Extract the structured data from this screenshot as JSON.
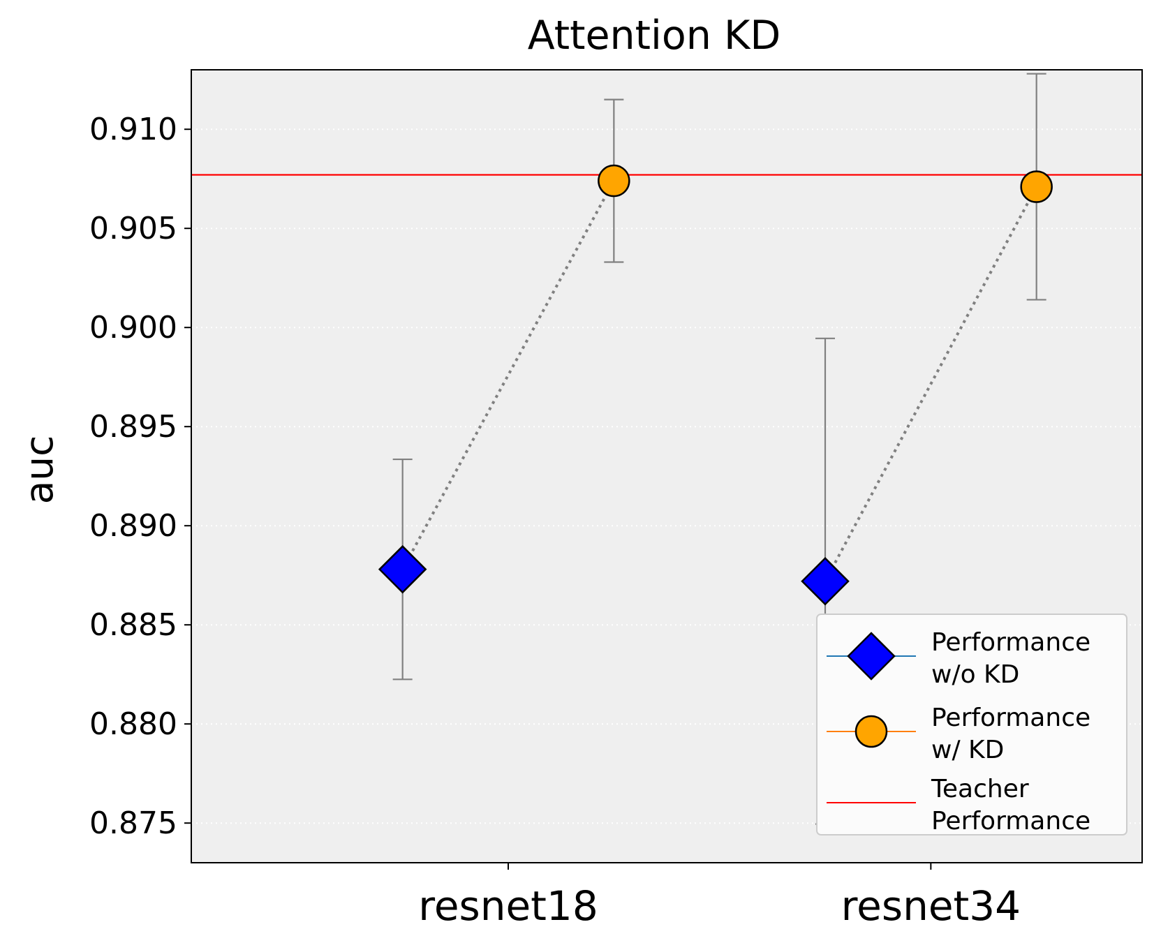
{
  "chart_data": {
    "type": "scatter",
    "title": "Attention KD",
    "xlabel": "",
    "ylabel": "auc",
    "categories": [
      "resnet18",
      "resnet34"
    ],
    "ylim": [
      0.873,
      0.913
    ],
    "yticks": [
      "0.875",
      "0.880",
      "0.885",
      "0.890",
      "0.895",
      "0.900",
      "0.905",
      "0.910"
    ],
    "grid": "horizontal dotted",
    "background": "#efefef",
    "series": [
      {
        "name": "Performance\nw/o KD",
        "marker": "diamond",
        "color": "#0000ff",
        "x": [
          0,
          1
        ],
        "values": [
          0.8878,
          0.8872
        ],
        "errors": [
          0.00555,
          0.01225
        ]
      },
      {
        "name": "Performance\nw/ KD",
        "marker": "circle",
        "color": "#ffa500",
        "x": [
          0.5,
          1.5
        ],
        "values": [
          0.9074,
          0.9071
        ],
        "errors": [
          0.0041,
          0.0057
        ]
      }
    ],
    "reference_line": {
      "name": "Teacher\nPerformance",
      "value": 0.9077,
      "color": "#ff0000"
    },
    "legend": {
      "position": "lower-right",
      "entries": [
        {
          "label_lines": [
            "Performance",
            "w/o KD"
          ],
          "marker": "diamond",
          "line_color": "#1f77b4",
          "fill": "#0000ff"
        },
        {
          "label_lines": [
            "Performance",
            "w/ KD"
          ],
          "marker": "circle",
          "line_color": "#ff7f0e",
          "fill": "#ffa500"
        },
        {
          "label_lines": [
            "Teacher",
            "Performance"
          ],
          "marker": "none",
          "line_color": "#ff0000",
          "fill": "none"
        }
      ]
    },
    "errorbar_color": "#808080",
    "connector_color": "#808080"
  }
}
